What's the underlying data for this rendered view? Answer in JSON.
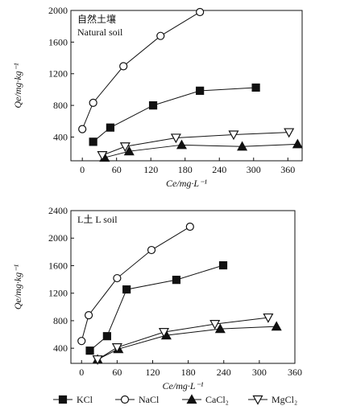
{
  "chart_data": [
    {
      "type": "line",
      "annotations": [
        "自然土壤",
        "Natural soil"
      ],
      "y_label": "Qe/mg·kg⁻¹",
      "x_label": "Ce/mg·L⁻¹",
      "xlim": [
        -20,
        385
      ],
      "xticks": [
        0,
        60,
        120,
        180,
        240,
        300,
        360
      ],
      "ylim": [
        100,
        2000
      ],
      "yticks": [
        400,
        800,
        1200,
        1600,
        2000
      ],
      "series": [
        {
          "name": "KCl",
          "color": "#111111",
          "marker": "square",
          "x": [
            19,
            49,
            124,
            206,
            304
          ],
          "values": [
            340,
            520,
            800,
            985,
            1025
          ]
        },
        {
          "name": "NaCl",
          "color": "#111111",
          "marker": "circle",
          "x": [
            0,
            19,
            72,
            137,
            206
          ],
          "values": [
            500,
            833,
            1295,
            1678,
            1980
          ]
        },
        {
          "name": "CaCl₂",
          "color": "#111111",
          "marker": "triangle-up",
          "x": [
            39,
            82,
            174,
            280,
            377
          ],
          "values": [
            140,
            220,
            300,
            280,
            310
          ]
        },
        {
          "name": "MgCl₂",
          "color": "#111111",
          "marker": "triangle-down",
          "x": [
            35,
            75,
            164,
            265,
            362
          ],
          "values": [
            170,
            280,
            390,
            430,
            460
          ]
        }
      ]
    },
    {
      "type": "line",
      "annotations": [
        "L土 L soil"
      ],
      "y_label": "Qe/mg·kg⁻¹",
      "x_label": "Ce/mg·L⁻¹",
      "xlim": [
        -18,
        360
      ],
      "xticks": [
        0,
        60,
        120,
        180,
        240,
        300,
        360
      ],
      "ylim": [
        180,
        2400
      ],
      "yticks": [
        400,
        800,
        1200,
        1600,
        2000,
        2400
      ],
      "series": [
        {
          "name": "KCl",
          "color": "#111111",
          "marker": "square",
          "x": [
            14,
            43,
            76,
            160,
            239
          ],
          "values": [
            365,
            575,
            1254,
            1394,
            1605
          ]
        },
        {
          "name": "NaCl",
          "color": "#111111",
          "marker": "circle",
          "x": [
            0,
            12,
            60,
            118,
            183
          ],
          "values": [
            505,
            880,
            1418,
            1827,
            2166
          ]
        },
        {
          "name": "CaCl₂",
          "color": "#111111",
          "marker": "triangle-up",
          "x": [
            27,
            62,
            143,
            234,
            329
          ],
          "values": [
            236,
            388,
            587,
            681,
            716
          ]
        },
        {
          "name": "MgCl₂",
          "color": "#111111",
          "marker": "triangle-down",
          "x": [
            27,
            60,
            139,
            225,
            315
          ],
          "values": [
            236,
            412,
            634,
            751,
            845
          ]
        }
      ]
    }
  ]
}
